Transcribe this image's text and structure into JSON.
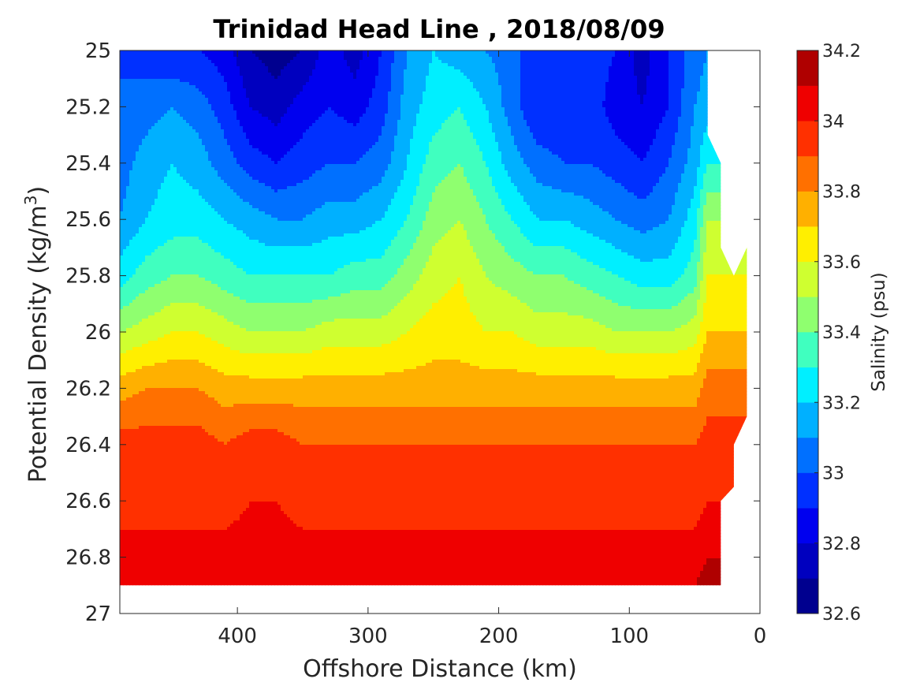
{
  "chart_data": {
    "type": "contour",
    "title": "Trinidad Head Line , 2018/08/09",
    "xlabel": "Offshore Distance (km)",
    "ylabel_main": "Potential Density (kg/m",
    "ylabel_sup": "3",
    "ylabel_end": ")",
    "colorbar_label": "Salinity (psu)",
    "xlim": [
      0,
      490
    ],
    "x_reversed": true,
    "ylim": [
      25,
      27
    ],
    "y_reversed": true,
    "x_ticks": [
      {
        "value": 400,
        "label": "400"
      },
      {
        "value": 300,
        "label": "300"
      },
      {
        "value": 200,
        "label": "200"
      },
      {
        "value": 100,
        "label": "100"
      },
      {
        "value": 0,
        "label": "0"
      }
    ],
    "y_ticks": [
      {
        "value": 25,
        "label": "25"
      },
      {
        "value": 25.2,
        "label": "25.2"
      },
      {
        "value": 25.4,
        "label": "25.4"
      },
      {
        "value": 25.6,
        "label": "25.6"
      },
      {
        "value": 25.8,
        "label": "25.8"
      },
      {
        "value": 26,
        "label": "26"
      },
      {
        "value": 26.2,
        "label": "26.2"
      },
      {
        "value": 26.4,
        "label": "26.4"
      },
      {
        "value": 26.6,
        "label": "26.6"
      },
      {
        "value": 26.8,
        "label": "26.8"
      },
      {
        "value": 27,
        "label": "27"
      }
    ],
    "colorbar_ticks": [
      {
        "value": 32.6,
        "label": "32.6"
      },
      {
        "value": 32.8,
        "label": "32.8"
      },
      {
        "value": 33.0,
        "label": "33"
      },
      {
        "value": 33.2,
        "label": "33.2"
      },
      {
        "value": 33.4,
        "label": "33.4"
      },
      {
        "value": 33.6,
        "label": "33.6"
      },
      {
        "value": 33.8,
        "label": "33.8"
      },
      {
        "value": 34.0,
        "label": "34"
      },
      {
        "value": 34.2,
        "label": "34.2"
      }
    ],
    "colorbar_range": [
      32.6,
      34.2
    ],
    "levels": [
      {
        "min": 32.6,
        "max": 32.7,
        "color": "#00008f"
      },
      {
        "min": 32.7,
        "max": 32.8,
        "color": "#0000bf"
      },
      {
        "min": 32.8,
        "max": 32.9,
        "color": "#0000ef"
      },
      {
        "min": 32.9,
        "max": 33.0,
        "color": "#0030ff"
      },
      {
        "min": 33.0,
        "max": 33.1,
        "color": "#0070ff"
      },
      {
        "min": 33.1,
        "max": 33.2,
        "color": "#00b0ff"
      },
      {
        "min": 33.2,
        "max": 33.3,
        "color": "#00efff"
      },
      {
        "min": 33.3,
        "max": 33.4,
        "color": "#40ffbf"
      },
      {
        "min": 33.4,
        "max": 33.5,
        "color": "#8fff6f"
      },
      {
        "min": 33.5,
        "max": 33.6,
        "color": "#cfff30"
      },
      {
        "min": 33.6,
        "max": 33.7,
        "color": "#ffef00"
      },
      {
        "min": 33.7,
        "max": 33.8,
        "color": "#ffb000"
      },
      {
        "min": 33.8,
        "max": 33.9,
        "color": "#ff7000"
      },
      {
        "min": 33.9,
        "max": 34.0,
        "color": "#ff3000"
      },
      {
        "min": 34.0,
        "max": 34.1,
        "color": "#ef0000"
      },
      {
        "min": 34.1,
        "max": 34.2,
        "color": "#af0000"
      }
    ],
    "field": {
      "x_distance_km": [
        490,
        470,
        450,
        430,
        410,
        390,
        370,
        350,
        330,
        310,
        290,
        270,
        250,
        230,
        210,
        190,
        170,
        150,
        130,
        110,
        90,
        70,
        50,
        40
      ],
      "upper_boundary_density": [
        {
          "x": 40,
          "y": 25.3
        },
        {
          "x": 30,
          "y": 25.4
        },
        {
          "x": 30,
          "y": 25.7
        },
        {
          "x": 20,
          "y": 25.8
        },
        {
          "x": 10,
          "y": 25.7
        }
      ],
      "right_boundary_density": [
        {
          "x": 10,
          "y": 26.3
        },
        {
          "x": 20,
          "y": 26.4
        },
        {
          "x": 20,
          "y": 26.55
        },
        {
          "x": 30,
          "y": 26.6
        },
        {
          "x": 30,
          "y": 26.9
        }
      ],
      "bottom_density": 26.9,
      "min_density": 25.0,
      "isopycnal_salinity_profiles": [
        {
          "density": 25.0,
          "salinity": [
            33.0,
            32.95,
            32.9,
            32.9,
            32.85,
            32.7,
            32.65,
            32.7,
            32.85,
            32.75,
            32.9,
            33.1,
            33.2,
            33.15,
            33.1,
            33.05,
            32.9,
            32.95,
            32.95,
            32.9,
            32.75,
            32.9,
            33.05,
            33.1
          ]
        },
        {
          "density": 25.2,
          "salinity": [
            33.0,
            33.05,
            33.1,
            33.05,
            32.95,
            32.8,
            32.75,
            32.85,
            32.9,
            32.85,
            32.95,
            33.15,
            33.25,
            33.3,
            33.2,
            33.05,
            32.9,
            32.9,
            32.95,
            32.85,
            32.8,
            32.9,
            33.1,
            33.15
          ]
        },
        {
          "density": 25.4,
          "salinity": [
            33.05,
            33.15,
            33.2,
            33.15,
            33.05,
            32.95,
            32.9,
            32.95,
            33.0,
            33.0,
            33.05,
            33.2,
            33.35,
            33.4,
            33.3,
            33.15,
            33.05,
            33.0,
            33.0,
            32.95,
            32.9,
            33.0,
            33.15,
            33.3
          ]
        },
        {
          "density": 25.6,
          "salinity": [
            33.1,
            33.2,
            33.25,
            33.25,
            33.2,
            33.15,
            33.1,
            33.1,
            33.15,
            33.15,
            33.2,
            33.3,
            33.45,
            33.5,
            33.4,
            33.3,
            33.2,
            33.2,
            33.15,
            33.1,
            33.05,
            33.1,
            33.25,
            33.5
          ]
        },
        {
          "density": 25.8,
          "salinity": [
            33.25,
            33.35,
            33.4,
            33.4,
            33.35,
            33.3,
            33.3,
            33.3,
            33.3,
            33.35,
            33.35,
            33.45,
            33.55,
            33.6,
            33.5,
            33.45,
            33.4,
            33.4,
            33.35,
            33.3,
            33.25,
            33.25,
            33.35,
            33.6
          ]
        },
        {
          "density": 26.0,
          "salinity": [
            33.5,
            33.55,
            33.6,
            33.6,
            33.55,
            33.5,
            33.5,
            33.5,
            33.55,
            33.55,
            33.55,
            33.6,
            33.65,
            33.65,
            33.6,
            33.6,
            33.55,
            33.55,
            33.55,
            33.5,
            33.5,
            33.5,
            33.55,
            33.7
          ]
        },
        {
          "density": 26.2,
          "salinity": [
            33.75,
            33.8,
            33.8,
            33.8,
            33.75,
            33.75,
            33.75,
            33.75,
            33.75,
            33.75,
            33.75,
            33.75,
            33.75,
            33.75,
            33.75,
            33.75,
            33.75,
            33.75,
            33.75,
            33.75,
            33.75,
            33.75,
            33.75,
            33.85
          ]
        },
        {
          "density": 26.4,
          "salinity": [
            33.95,
            33.95,
            33.95,
            33.95,
            33.9,
            33.95,
            33.95,
            33.9,
            33.9,
            33.9,
            33.9,
            33.9,
            33.9,
            33.9,
            33.9,
            33.9,
            33.9,
            33.9,
            33.9,
            33.9,
            33.9,
            33.9,
            33.9,
            33.95
          ]
        },
        {
          "density": 26.6,
          "salinity": [
            33.95,
            33.95,
            33.95,
            33.95,
            33.95,
            34.0,
            34.0,
            33.95,
            33.95,
            33.95,
            33.95,
            33.95,
            33.95,
            33.95,
            33.95,
            33.95,
            33.95,
            33.95,
            33.95,
            33.95,
            33.95,
            33.95,
            33.95,
            34.0
          ]
        },
        {
          "density": 26.8,
          "salinity": [
            34.05,
            34.05,
            34.05,
            34.05,
            34.05,
            34.05,
            34.05,
            34.05,
            34.05,
            34.05,
            34.05,
            34.05,
            34.05,
            34.05,
            34.05,
            34.05,
            34.05,
            34.05,
            34.05,
            34.05,
            34.05,
            34.05,
            34.05,
            34.1
          ]
        }
      ]
    }
  }
}
